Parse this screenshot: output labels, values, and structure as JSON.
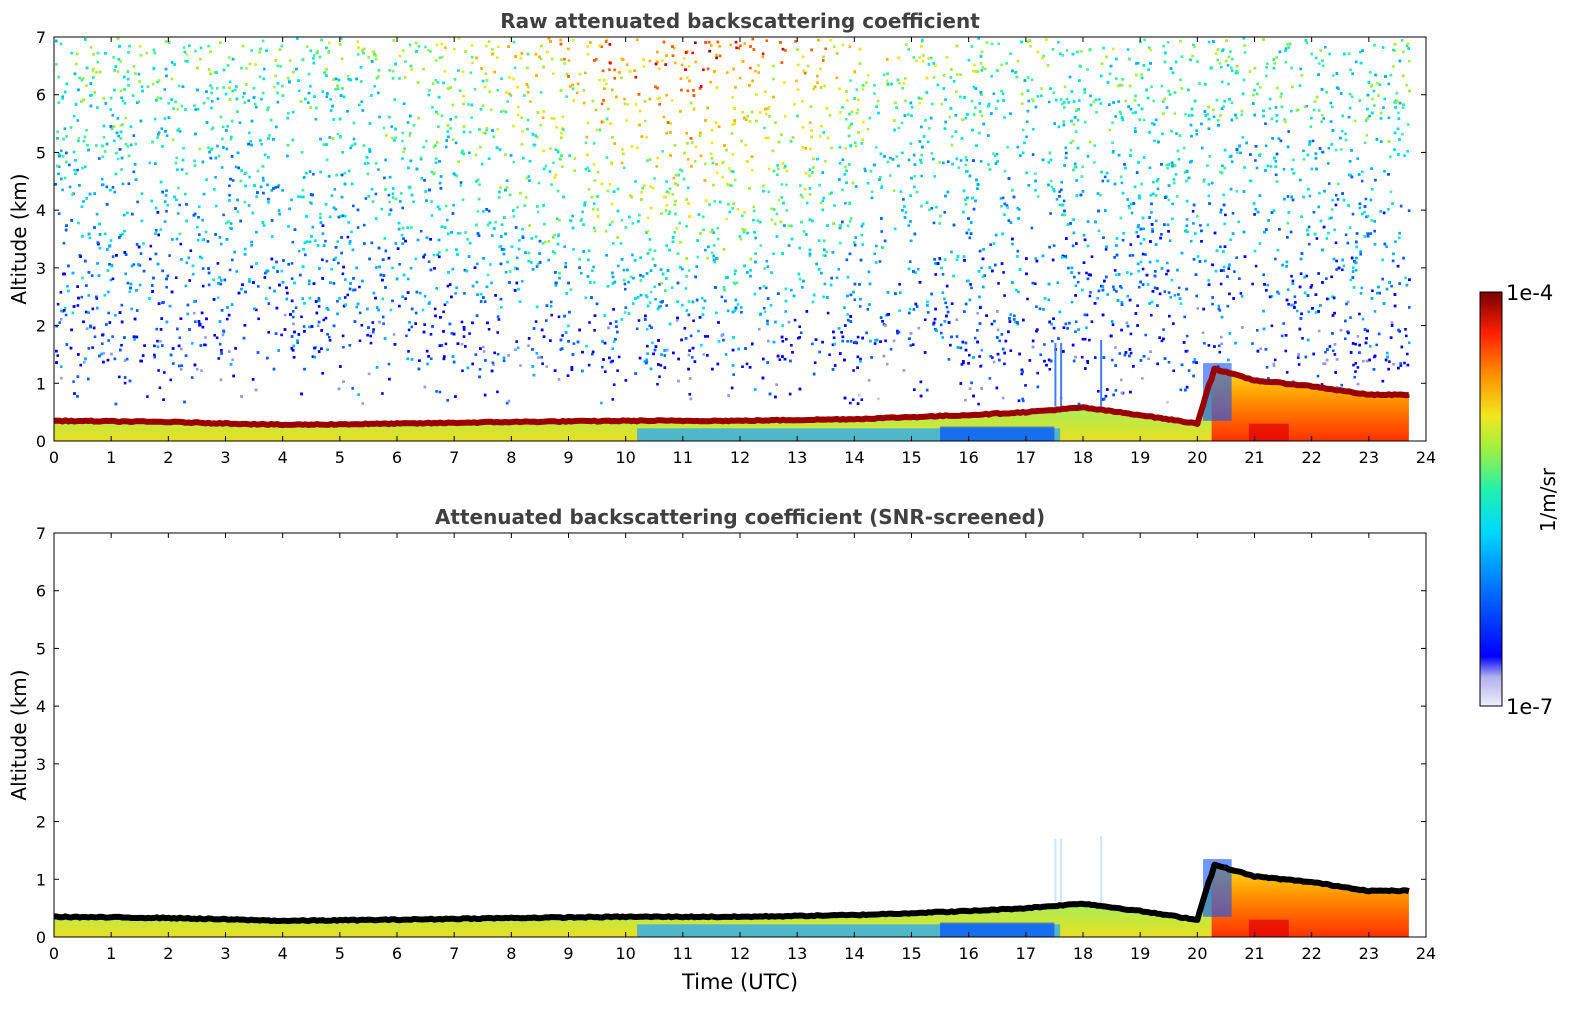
{
  "chart_data": [
    {
      "type": "heatmap",
      "title": "Raw attenuated backscattering coefficient",
      "xlabel": "",
      "ylabel": "Altitude (km)",
      "xlim": [
        0,
        24
      ],
      "ylim": [
        0,
        7
      ],
      "xticks": [
        "0",
        "1",
        "2",
        "3",
        "4",
        "5",
        "6",
        "7",
        "8",
        "9",
        "10",
        "11",
        "12",
        "13",
        "14",
        "15",
        "16",
        "17",
        "18",
        "19",
        "20",
        "21",
        "22",
        "23",
        "24"
      ],
      "yticks": [
        "0",
        "1",
        "2",
        "3",
        "4",
        "5",
        "6",
        "7"
      ],
      "data_end_hour": 23.7,
      "boundary_layer_top_km": [
        [
          0,
          0.35
        ],
        [
          2,
          0.33
        ],
        [
          4,
          0.28
        ],
        [
          6,
          0.3
        ],
        [
          8,
          0.33
        ],
        [
          10,
          0.35
        ],
        [
          12,
          0.35
        ],
        [
          14,
          0.38
        ],
        [
          16,
          0.45
        ],
        [
          17,
          0.5
        ],
        [
          18,
          0.58
        ],
        [
          19,
          0.45
        ],
        [
          20,
          0.3
        ],
        [
          20.3,
          1.3
        ],
        [
          21,
          1.1
        ],
        [
          22,
          1.0
        ],
        [
          23,
          0.85
        ],
        [
          23.7,
          0.85
        ]
      ],
      "noise_floor_km": 1.1,
      "signal_level": {
        "below_layer": "cyan-yellow",
        "layer": "dark red",
        "after_20h": "orange-red",
        "upper_noise_midday": "yellow-orange"
      }
    },
    {
      "type": "heatmap",
      "title": "Attenuated backscattering coefficient (SNR-screened)",
      "xlabel": "Time (UTC)",
      "ylabel": "Altitude (km)",
      "xlim": [
        0,
        24
      ],
      "ylim": [
        0,
        7
      ],
      "xticks": [
        "0",
        "1",
        "2",
        "3",
        "4",
        "5",
        "6",
        "7",
        "8",
        "9",
        "10",
        "11",
        "12",
        "13",
        "14",
        "15",
        "16",
        "17",
        "18",
        "19",
        "20",
        "21",
        "22",
        "23",
        "24"
      ],
      "yticks": [
        "0",
        "1",
        "2",
        "3",
        "4",
        "5",
        "6",
        "7"
      ],
      "data_end_hour": 23.7,
      "boundary_layer_top_km": [
        [
          0,
          0.35
        ],
        [
          2,
          0.33
        ],
        [
          4,
          0.28
        ],
        [
          6,
          0.3
        ],
        [
          8,
          0.33
        ],
        [
          10,
          0.35
        ],
        [
          12,
          0.35
        ],
        [
          14,
          0.38
        ],
        [
          16,
          0.45
        ],
        [
          17,
          0.5
        ],
        [
          18,
          0.58
        ],
        [
          19,
          0.45
        ],
        [
          20,
          0.3
        ],
        [
          20.3,
          1.3
        ],
        [
          21,
          1.1
        ],
        [
          22,
          1.0
        ],
        [
          23,
          0.85
        ],
        [
          23.7,
          0.85
        ]
      ],
      "layer_color": "black"
    }
  ],
  "colorbar": {
    "label": "1/m/sr",
    "max_label": "1e-4",
    "min_label": "1e-7",
    "colors": [
      "#e8e8f8",
      "#c8c8f0",
      "#9898e8",
      "#0000ff",
      "#0060ff",
      "#00b0ff",
      "#00e0e0",
      "#40f0a0",
      "#a0f040",
      "#e8e820",
      "#ffb000",
      "#ff6000",
      "#e00000",
      "#800000"
    ]
  }
}
